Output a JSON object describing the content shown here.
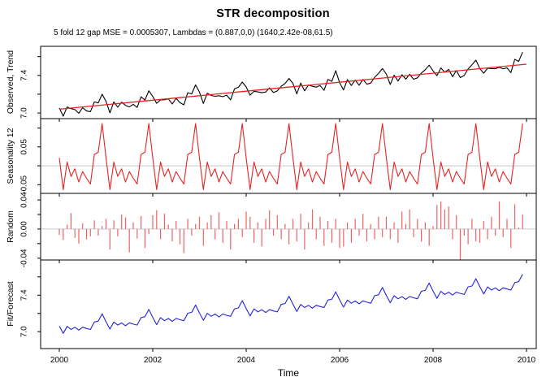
{
  "title": "STR decomposition",
  "subtitle": "5 fold 12 gap MSE = 0.0005307, Lambdas = (0.887,0,0) (1640,2.42e-08,61.5)",
  "colors": {
    "observed": "#000000",
    "trend": "#e82222",
    "seasonal": "#e82222",
    "random": "#f26262",
    "fit": "#2323dd",
    "zero_line": "#d4d4d4",
    "axis": "#000000"
  },
  "xaxis": {
    "label": "Time",
    "ticks": [
      2000,
      2002,
      2004,
      2006,
      2008,
      2010
    ],
    "range": [
      1999.6,
      2010.2
    ]
  },
  "chart_data": [
    {
      "type": "line",
      "name": "observed-trend-panel",
      "ylabel": "Observed, Trend",
      "top": 57,
      "height": 89,
      "ylim": [
        6.94,
        7.71
      ],
      "yticks": [
        {
          "v": 7.0,
          "label": "7.0"
        },
        {
          "v": 7.2,
          "label": ""
        },
        {
          "v": 7.4,
          "label": "7.4"
        },
        {
          "v": 7.6,
          "label": ""
        }
      ],
      "zero_line": false,
      "series": [
        {
          "name": "observed",
          "color": "#000000",
          "draw": "line",
          "width": 1.1,
          "x0": 2000,
          "dx": 0.0833333,
          "values": [
            7.053,
            6.966,
            7.064,
            7.046,
            7.036,
            6.997,
            7.057,
            7.021,
            7.014,
            7.118,
            7.107,
            7.2,
            7.123,
            7.001,
            7.118,
            7.062,
            7.116,
            7.081,
            7.065,
            7.092,
            7.059,
            7.172,
            7.138,
            7.237,
            7.176,
            7.103,
            7.14,
            7.141,
            7.15,
            7.096,
            7.156,
            7.11,
            7.087,
            7.216,
            7.203,
            7.299,
            7.222,
            7.102,
            7.211,
            7.187,
            7.178,
            7.184,
            7.174,
            7.19,
            7.14,
            7.257,
            7.274,
            7.329,
            7.277,
            7.19,
            7.231,
            7.225,
            7.216,
            7.223,
            7.267,
            7.218,
            7.235,
            7.284,
            7.315,
            7.367,
            7.315,
            7.204,
            7.319,
            7.236,
            7.297,
            7.284,
            7.275,
            7.292,
            7.241,
            7.357,
            7.337,
            7.45,
            7.323,
            7.245,
            7.355,
            7.293,
            7.35,
            7.296,
            7.358,
            7.306,
            7.319,
            7.38,
            7.421,
            7.473,
            7.414,
            7.303,
            7.403,
            7.341,
            7.408,
            7.36,
            7.412,
            7.36,
            7.374,
            7.425,
            7.461,
            7.509,
            7.449,
            7.398,
            7.48,
            7.435,
            7.463,
            7.387,
            7.452,
            7.377,
            7.399,
            7.469,
            7.514,
            7.563,
            7.474,
            7.424,
            7.476,
            7.473,
            7.471,
            7.487,
            7.47,
            7.481,
            7.43,
            7.572,
            7.55,
            7.648
          ]
        },
        {
          "name": "trend",
          "color": "#e82222",
          "draw": "line",
          "width": 1.3,
          "x0": 2000,
          "dx": 1,
          "values": [
            7.04,
            7.088,
            7.136,
            7.184,
            7.232,
            7.28,
            7.328,
            7.376,
            7.424,
            7.472,
            7.52
          ]
        }
      ]
    },
    {
      "type": "line",
      "name": "seasonality-panel",
      "ylabel": "Seasonality 12",
      "top": 146,
      "height": 92,
      "ylim": [
        -0.073,
        0.125
      ],
      "yticks": [
        {
          "v": -0.05,
          "label": "-0.05"
        },
        {
          "v": 0.0,
          "label": ""
        },
        {
          "v": 0.05,
          "label": "0.05"
        },
        {
          "v": 0.1,
          "label": ""
        }
      ],
      "zero_line": true,
      "series": [
        {
          "name": "seasonality",
          "color": "#e82222",
          "draw": "line",
          "width": 1.1,
          "x0": 2000,
          "dx": 0.0833333,
          "values": [
            0.021,
            -0.063,
            0.01,
            -0.028,
            -0.008,
            -0.043,
            -0.015,
            -0.033,
            -0.048,
            0.03,
            0.036,
            0.112,
            0.021,
            -0.063,
            0.01,
            -0.028,
            -0.008,
            -0.043,
            -0.015,
            -0.033,
            -0.048,
            0.03,
            0.036,
            0.112,
            0.021,
            -0.063,
            0.01,
            -0.028,
            -0.008,
            -0.043,
            -0.015,
            -0.033,
            -0.048,
            0.03,
            0.036,
            0.112,
            0.021,
            -0.063,
            0.01,
            -0.028,
            -0.008,
            -0.043,
            -0.015,
            -0.033,
            -0.048,
            0.03,
            0.036,
            0.112,
            0.021,
            -0.063,
            0.01,
            -0.028,
            -0.008,
            -0.043,
            -0.015,
            -0.033,
            -0.048,
            0.03,
            0.036,
            0.112,
            0.021,
            -0.063,
            0.01,
            -0.028,
            -0.008,
            -0.043,
            -0.015,
            -0.033,
            -0.048,
            0.03,
            0.036,
            0.112,
            0.021,
            -0.063,
            0.01,
            -0.028,
            -0.008,
            -0.043,
            -0.015,
            -0.033,
            -0.048,
            0.03,
            0.036,
            0.112,
            0.021,
            -0.063,
            0.01,
            -0.028,
            -0.008,
            -0.043,
            -0.015,
            -0.033,
            -0.048,
            0.03,
            0.036,
            0.112,
            0.021,
            -0.063,
            0.01,
            -0.028,
            -0.008,
            -0.043,
            -0.015,
            -0.033,
            -0.048,
            0.03,
            0.036,
            0.112,
            0.021,
            -0.063,
            0.01,
            -0.028,
            -0.008,
            -0.043,
            -0.015,
            -0.033,
            -0.048,
            0.03,
            0.036,
            0.112
          ]
        }
      ]
    },
    {
      "type": "bars",
      "name": "random-panel",
      "ylabel": "Random",
      "top": 238,
      "height": 82,
      "ylim": [
        -0.0425,
        0.049
      ],
      "yticks": [
        {
          "v": -0.04,
          "label": "-0.04"
        },
        {
          "v": -0.02,
          "label": ""
        },
        {
          "v": 0.0,
          "label": "0.00"
        },
        {
          "v": 0.02,
          "label": ""
        },
        {
          "v": 0.04,
          "label": "0.04"
        }
      ],
      "zero_line": true,
      "series": [
        {
          "name": "random",
          "color": "#f26262",
          "draw": "bars",
          "width": 1.2,
          "x0": 2000,
          "dx": 0.0833333,
          "values": [
            -0.008,
            -0.015,
            0.006,
            0.022,
            -0.012,
            -0.02,
            0.008,
            -0.014,
            -0.01,
            0.012,
            -0.009,
            0.004,
            0.014,
            -0.028,
            0.012,
            -0.01,
            0.02,
            0.016,
            -0.032,
            0.009,
            -0.013,
            0.018,
            -0.026,
            -0.007,
            0.019,
            0.026,
            -0.014,
            0.021,
            0.006,
            -0.017,
            0.011,
            -0.021,
            -0.033,
            0.014,
            -0.009,
            0.007,
            0.017,
            -0.023,
            0.009,
            0.019,
            -0.014,
            0.023,
            -0.019,
            0.011,
            -0.028,
            0.007,
            0.014,
            -0.011,
            0.024,
            0.017,
            -0.019,
            0.009,
            -0.024,
            0.014,
            0.026,
            -0.009,
            0.019,
            -0.014,
            0.007,
            -0.021,
            0.014,
            -0.017,
            0.021,
            -0.028,
            0.009,
            0.027,
            -0.014,
            0.017,
            -0.023,
            0.011,
            -0.019,
            0.014,
            -0.026,
            -0.024,
            0.009,
            -0.019,
            0.014,
            -0.009,
            0.021,
            -0.017,
            0.007,
            -0.014,
            0.017,
            -0.011,
            0.017,
            -0.014,
            0.009,
            -0.019,
            0.024,
            0.007,
            0.027,
            -0.011,
            0.014,
            -0.017,
            0.009,
            -0.023,
            0.004,
            0.033,
            0.038,
            0.027,
            0.031,
            -0.014,
            0.019,
            -0.042,
            -0.009,
            -0.021,
            0.014,
            -0.017,
            -0.019,
            0.011,
            -0.014,
            0.017,
            -0.009,
            0.038,
            -0.011,
            0.014,
            -0.026,
            0.034,
            0.002,
            0.02
          ]
        }
      ]
    },
    {
      "type": "line",
      "name": "fit-forecast-panel",
      "ylabel": "Fit/Forecast",
      "top": 320,
      "height": 109,
      "ylim": [
        6.815,
        7.785
      ],
      "yticks": [
        {
          "v": 7.0,
          "label": "7.0"
        },
        {
          "v": 7.2,
          "label": ""
        },
        {
          "v": 7.4,
          "label": "7.4"
        },
        {
          "v": 7.6,
          "label": ""
        }
      ],
      "zero_line": false,
      "series": [
        {
          "name": "fit-forecast",
          "color": "#2323dd",
          "draw": "line",
          "width": 1.1,
          "x0": 2000,
          "dx": 0.0833333,
          "values": [
            7.061,
            6.981,
            7.058,
            7.024,
            7.048,
            7.017,
            7.049,
            7.035,
            7.024,
            7.106,
            7.116,
            7.196,
            7.109,
            7.029,
            7.106,
            7.072,
            7.096,
            7.065,
            7.097,
            7.083,
            7.072,
            7.154,
            7.164,
            7.244,
            7.157,
            7.077,
            7.154,
            7.12,
            7.144,
            7.113,
            7.145,
            7.131,
            7.12,
            7.202,
            7.212,
            7.292,
            7.205,
            7.125,
            7.202,
            7.168,
            7.192,
            7.161,
            7.193,
            7.179,
            7.168,
            7.25,
            7.26,
            7.34,
            7.253,
            7.173,
            7.25,
            7.216,
            7.24,
            7.209,
            7.241,
            7.227,
            7.216,
            7.298,
            7.308,
            7.388,
            7.301,
            7.221,
            7.298,
            7.264,
            7.288,
            7.257,
            7.289,
            7.275,
            7.264,
            7.346,
            7.356,
            7.436,
            7.349,
            7.269,
            7.346,
            7.312,
            7.336,
            7.305,
            7.337,
            7.323,
            7.312,
            7.394,
            7.404,
            7.484,
            7.397,
            7.317,
            7.394,
            7.36,
            7.384,
            7.353,
            7.385,
            7.371,
            7.36,
            7.442,
            7.452,
            7.532,
            7.445,
            7.365,
            7.442,
            7.408,
            7.432,
            7.401,
            7.433,
            7.419,
            7.408,
            7.49,
            7.5,
            7.58,
            7.493,
            7.413,
            7.49,
            7.456,
            7.48,
            7.449,
            7.481,
            7.467,
            7.456,
            7.538,
            7.548,
            7.628
          ]
        }
      ]
    }
  ]
}
